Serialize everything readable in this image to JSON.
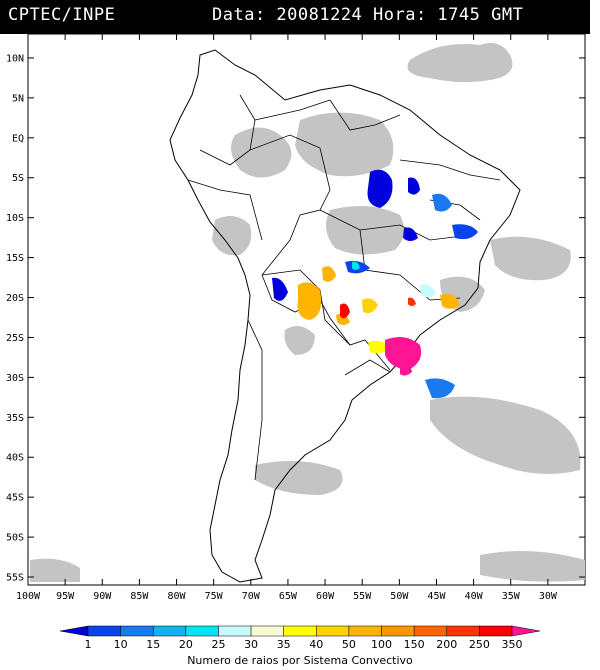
{
  "header": {
    "source": "CPTEC/INPE",
    "datetime": "Data: 20081224 Hora: 1745 GMT"
  },
  "map": {
    "lon_range": [
      -100,
      -25
    ],
    "lat_range": [
      -56,
      13
    ],
    "lat_labels": [
      "10N",
      "5N",
      "EQ",
      "5S",
      "10S",
      "15S",
      "20S",
      "25S",
      "30S",
      "35S",
      "40S",
      "45S",
      "50S",
      "55S"
    ],
    "lat_values": [
      10,
      5,
      0,
      -5,
      -10,
      -15,
      -20,
      -25,
      -30,
      -35,
      -40,
      -45,
      -50,
      -55
    ],
    "lon_labels": [
      "100W",
      "95W",
      "90W",
      "85W",
      "80W",
      "75W",
      "70W",
      "65W",
      "60W",
      "55W",
      "50W",
      "45W",
      "40W",
      "35W",
      "30W"
    ],
    "lon_values": [
      -100,
      -95,
      -90,
      -85,
      -80,
      -75,
      -70,
      -65,
      -60,
      -55,
      -50,
      -45,
      -40,
      -35,
      -30
    ]
  },
  "colorbar": {
    "labels": [
      "1",
      "10",
      "15",
      "20",
      "25",
      "30",
      "35",
      "40",
      "50",
      "100",
      "150",
      "200",
      "250",
      "350"
    ],
    "colors": [
      "#0000dd",
      "#0a44ee",
      "#1a78f0",
      "#10b4ee",
      "#00e4f0",
      "#c8fafa",
      "#fafad2",
      "#ffff00",
      "#ffd200",
      "#ffb400",
      "#ff9600",
      "#ff6400",
      "#ff3200",
      "#ff0000",
      "#ff1493"
    ],
    "title": "Numero de raios por Sistema Convectivo"
  }
}
